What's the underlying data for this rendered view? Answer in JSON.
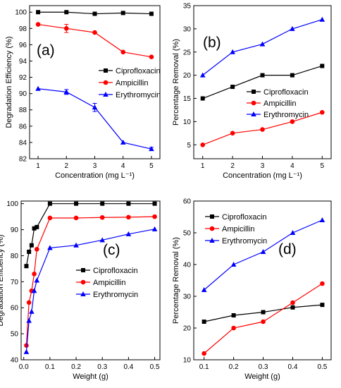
{
  "chart_data": [
    {
      "panel_label": "(a)",
      "type": "line",
      "xlabel": "Concentration (mg L⁻¹)",
      "ylabel": "Degradation Efficiency (%)",
      "xlim": [
        0.7,
        5.3
      ],
      "ylim": [
        82,
        100.8
      ],
      "xticks": [
        1,
        2,
        3,
        4,
        5
      ],
      "yticks": [
        82,
        84,
        86,
        88,
        90,
        92,
        94,
        96,
        98,
        100
      ],
      "grid": false,
      "legend_position": "middle-right",
      "series": [
        {
          "name": "Ciprofloxacin",
          "color": "#000000",
          "marker": "square",
          "x": [
            1,
            2,
            3,
            4,
            5
          ],
          "y": [
            100.0,
            100.0,
            99.8,
            99.9,
            99.8
          ]
        },
        {
          "name": "Ampicillin",
          "color": "#ff0000",
          "marker": "circle",
          "x": [
            1,
            2,
            3,
            4,
            5
          ],
          "y": [
            98.5,
            98.0,
            97.5,
            95.1,
            94.5
          ],
          "error": [
            0,
            0.5,
            0,
            0,
            0
          ]
        },
        {
          "name": "Erythromycin",
          "color": "#0000ff",
          "marker": "triangle",
          "x": [
            1,
            2,
            3,
            4,
            5
          ],
          "y": [
            90.6,
            90.2,
            88.3,
            84.0,
            83.2
          ],
          "error": [
            0,
            0.3,
            0.5,
            0,
            0.2
          ]
        }
      ]
    },
    {
      "panel_label": "(b)",
      "type": "line",
      "xlabel": "Concentration (mg L⁻¹)",
      "ylabel": "Percentage Removal (%)",
      "xlim": [
        0.7,
        5.3
      ],
      "ylim": [
        2,
        35
      ],
      "xticks": [
        1,
        2,
        3,
        4,
        5
      ],
      "yticks": [
        5,
        10,
        15,
        20,
        25,
        30,
        35
      ],
      "grid": false,
      "legend_position": "middle-right",
      "series": [
        {
          "name": "Ciprofloxacin",
          "color": "#000000",
          "marker": "square",
          "x": [
            1,
            2,
            3,
            4,
            5
          ],
          "y": [
            15,
            17.5,
            20,
            20,
            22
          ]
        },
        {
          "name": "Ampicillin",
          "color": "#ff0000",
          "marker": "circle",
          "x": [
            1,
            2,
            3,
            4,
            5
          ],
          "y": [
            5,
            7.5,
            8.3,
            10,
            12
          ]
        },
        {
          "name": "Erythromycin",
          "color": "#0000ff",
          "marker": "triangle",
          "x": [
            1,
            2,
            3,
            4,
            5
          ],
          "y": [
            20,
            25,
            26.7,
            30,
            32
          ]
        }
      ]
    },
    {
      "panel_label": "(c)",
      "type": "line",
      "xlabel": "Weight (g)",
      "ylabel": "Degradation Efficiency (%)",
      "xlim": [
        -0.01,
        0.52
      ],
      "ylim": [
        40,
        101
      ],
      "xticks": [
        0.0,
        0.1,
        0.2,
        0.3,
        0.4,
        0.5
      ],
      "yticks": [
        40,
        50,
        60,
        70,
        80,
        90,
        100
      ],
      "grid": false,
      "legend_position": "bottom-right",
      "series": [
        {
          "name": "Ciprofloxacin",
          "color": "#000000",
          "marker": "square",
          "x": [
            0.01,
            0.02,
            0.03,
            0.04,
            0.05,
            0.1,
            0.2,
            0.3,
            0.4,
            0.5
          ],
          "y": [
            76,
            81.5,
            84,
            90.5,
            91,
            100,
            100,
            100,
            100,
            100
          ]
        },
        {
          "name": "Ampicillin",
          "color": "#ff0000",
          "marker": "circle",
          "x": [
            0.01,
            0.02,
            0.03,
            0.04,
            0.05,
            0.1,
            0.2,
            0.3,
            0.4,
            0.5
          ],
          "y": [
            45.5,
            62,
            66.5,
            73,
            82.5,
            94.5,
            94.5,
            94.7,
            94.8,
            95
          ]
        },
        {
          "name": "Erythromycin",
          "color": "#0000ff",
          "marker": "triangle",
          "x": [
            0.01,
            0.02,
            0.03,
            0.04,
            0.05,
            0.1,
            0.2,
            0.3,
            0.4,
            0.5
          ],
          "y": [
            43,
            55,
            58.5,
            66.5,
            70.5,
            83,
            84,
            86,
            88.3,
            90.2
          ]
        }
      ]
    },
    {
      "panel_label": "(d)",
      "type": "line",
      "xlabel": "Weight (g)",
      "ylabel": "Percentage Removal (%)",
      "xlim": [
        0.065,
        0.53
      ],
      "ylim": [
        10,
        60
      ],
      "xticks": [
        0.1,
        0.2,
        0.3,
        0.4,
        0.5
      ],
      "yticks": [
        10,
        20,
        30,
        40,
        50,
        60
      ],
      "grid": false,
      "legend_position": "top-left",
      "series": [
        {
          "name": "Ciprofloxacin",
          "color": "#000000",
          "marker": "square",
          "x": [
            0.1,
            0.2,
            0.3,
            0.4,
            0.5
          ],
          "y": [
            22,
            24,
            25,
            26.5,
            27.3
          ]
        },
        {
          "name": "Ampicillin",
          "color": "#ff0000",
          "marker": "circle",
          "x": [
            0.1,
            0.2,
            0.3,
            0.4,
            0.5
          ],
          "y": [
            12,
            20,
            22,
            28,
            34
          ]
        },
        {
          "name": "Erythromycin",
          "color": "#0000ff",
          "marker": "triangle",
          "x": [
            0.1,
            0.2,
            0.3,
            0.4,
            0.5
          ],
          "y": [
            32,
            40,
            44,
            50,
            54
          ]
        }
      ]
    }
  ]
}
